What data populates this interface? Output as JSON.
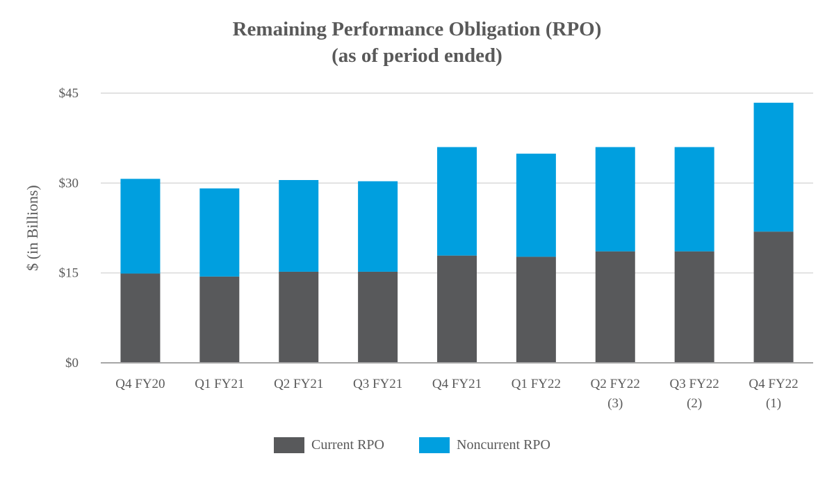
{
  "chart_data": {
    "type": "bar",
    "stacked": true,
    "title": "Remaining Performance Obligation (RPO)",
    "subtitle": "(as of period ended)",
    "ylabel": "$ (in Billions)",
    "ylim": [
      0,
      45
    ],
    "yticks": [
      0,
      15,
      30,
      45
    ],
    "ytick_labels": [
      "$0",
      "$15",
      "$30",
      "$45"
    ],
    "grid": true,
    "legend_position": "bottom",
    "categories": [
      [
        "Q4 FY20"
      ],
      [
        "Q1 FY21"
      ],
      [
        "Q2 FY21"
      ],
      [
        "Q3 FY21"
      ],
      [
        "Q4 FY21"
      ],
      [
        "Q1 FY22"
      ],
      [
        "Q2 FY22",
        "(3)"
      ],
      [
        "Q3 FY22",
        "(2)"
      ],
      [
        "Q4 FY22",
        "(1)"
      ]
    ],
    "series": [
      {
        "name": "Current RPO",
        "color": "#58595b",
        "values": [
          14.9,
          14.4,
          15.2,
          15.2,
          17.9,
          17.7,
          18.6,
          18.6,
          21.9
        ]
      },
      {
        "name": "Noncurrent RPO",
        "color": "#009fdf",
        "values": [
          15.8,
          14.7,
          15.3,
          15.1,
          18.1,
          17.2,
          17.4,
          17.4,
          21.5
        ]
      }
    ]
  }
}
